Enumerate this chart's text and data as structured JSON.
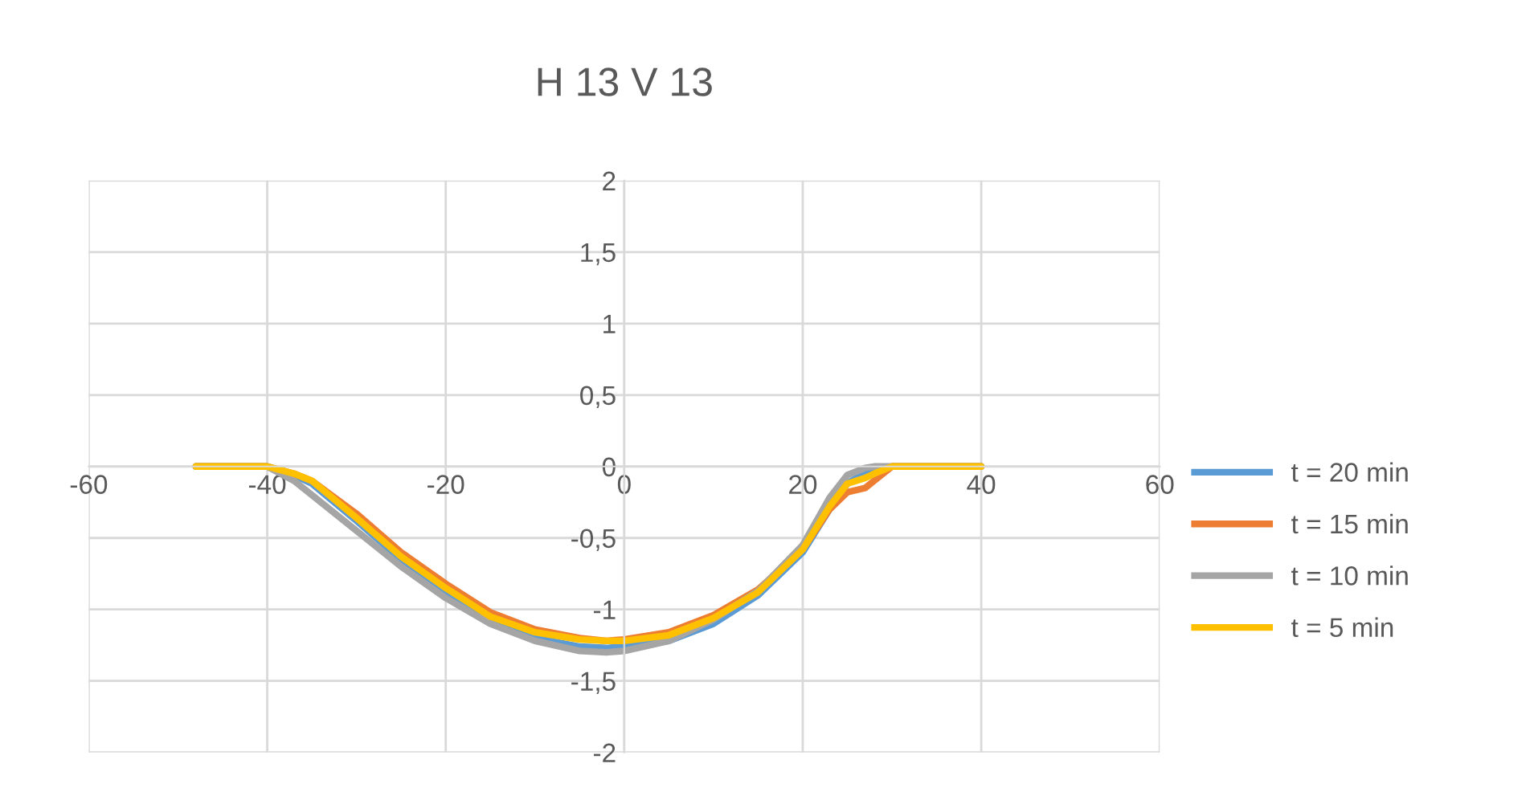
{
  "chart_data": {
    "type": "line",
    "title": "H 13 V 13",
    "x": [
      -48,
      -40,
      -37,
      -35,
      -30,
      -25,
      -20,
      -15,
      -10,
      -5,
      -2,
      0,
      5,
      10,
      15,
      20,
      23,
      25,
      27,
      28,
      30,
      40
    ],
    "series": [
      {
        "name": "t = 20 min",
        "color": "#5b9bd5",
        "values": [
          0,
          0,
          -0.06,
          -0.12,
          -0.38,
          -0.65,
          -0.88,
          -1.07,
          -1.2,
          -1.26,
          -1.27,
          -1.26,
          -1.22,
          -1.1,
          -0.9,
          -0.6,
          -0.3,
          -0.12,
          -0.04,
          -0.02,
          0,
          0
        ]
      },
      {
        "name": "t = 15 min",
        "color": "#ed7d31",
        "values": [
          0,
          0,
          -0.05,
          -0.1,
          -0.33,
          -0.6,
          -0.82,
          -1.02,
          -1.14,
          -1.2,
          -1.22,
          -1.21,
          -1.16,
          -1.04,
          -0.86,
          -0.58,
          -0.3,
          -0.18,
          -0.15,
          -0.1,
          0,
          0
        ]
      },
      {
        "name": "t = 10 min",
        "color": "#a5a5a5",
        "values": [
          0,
          0,
          -0.1,
          -0.2,
          -0.45,
          -0.7,
          -0.92,
          -1.1,
          -1.22,
          -1.29,
          -1.3,
          -1.29,
          -1.22,
          -1.07,
          -0.87,
          -0.55,
          -0.22,
          -0.06,
          -0.01,
          0,
          0,
          0
        ]
      },
      {
        "name": "t = 5 min",
        "color": "#ffc000",
        "values": [
          0,
          0,
          -0.05,
          -0.1,
          -0.36,
          -0.63,
          -0.85,
          -1.05,
          -1.16,
          -1.21,
          -1.22,
          -1.22,
          -1.18,
          -1.06,
          -0.88,
          -0.58,
          -0.28,
          -0.12,
          -0.08,
          -0.05,
          0,
          0
        ]
      }
    ],
    "xlim": [
      -60,
      60
    ],
    "xticks": [
      -60,
      -40,
      -20,
      0,
      20,
      40,
      60
    ],
    "ylim": [
      -2,
      2
    ],
    "yticks": [
      {
        "value": -2,
        "label": "-2"
      },
      {
        "value": -1.5,
        "label": "-1,5"
      },
      {
        "value": -1,
        "label": "-1"
      },
      {
        "value": -0.5,
        "label": "-0,5"
      },
      {
        "value": 0,
        "label": "0"
      },
      {
        "value": 0.5,
        "label": "0,5"
      },
      {
        "value": 1,
        "label": "1"
      },
      {
        "value": 1.5,
        "label": "1,5"
      },
      {
        "value": 2,
        "label": "2"
      }
    ],
    "grid": true,
    "legend": "right",
    "marker": "none",
    "line_style": "solid"
  }
}
